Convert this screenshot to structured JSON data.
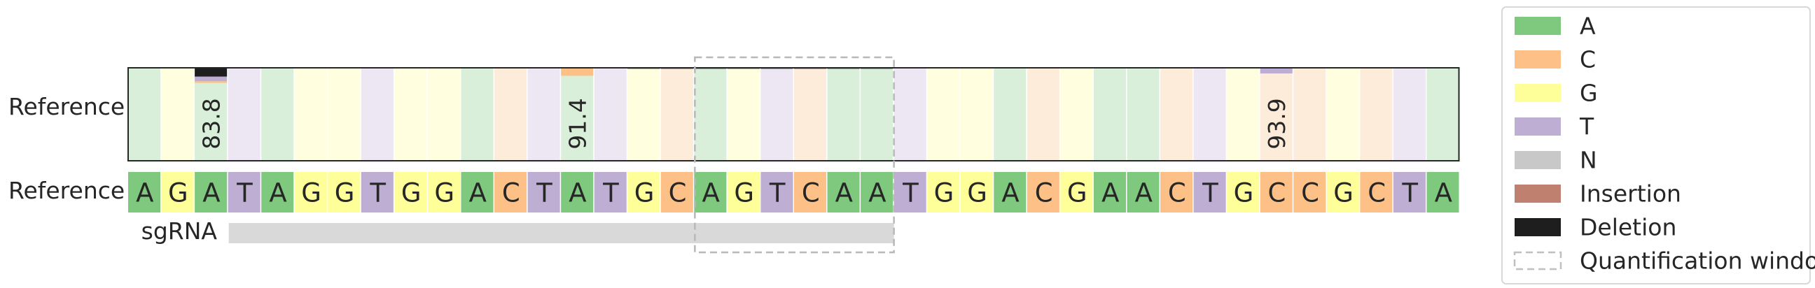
{
  "chart_data": {
    "type": "heatmap",
    "reference_row_label": "Reference",
    "sequence_row_label": "Reference",
    "sgrna_label": "sgRNA",
    "sequence": [
      "A",
      "G",
      "A",
      "T",
      "A",
      "G",
      "G",
      "T",
      "G",
      "G",
      "A",
      "C",
      "T",
      "A",
      "T",
      "G",
      "C",
      "A",
      "G",
      "T",
      "C",
      "A",
      "A",
      "T",
      "G",
      "G",
      "A",
      "C",
      "G",
      "A",
      "A",
      "C",
      "T",
      "G",
      "C",
      "C",
      "G",
      "C",
      "T",
      "A"
    ],
    "sgrna_span": [
      3,
      23
    ],
    "quantification_window": [
      17,
      23
    ],
    "percent_labels": [
      {
        "pos": 2,
        "text": "83.8"
      },
      {
        "pos": 13,
        "text": "91.4"
      },
      {
        "pos": 34,
        "text": "93.9"
      }
    ],
    "stacked_alleles": [
      {
        "pos": 2,
        "segments": [
          {
            "type": "Deletion",
            "value": 9.5
          },
          {
            "type": "T",
            "value": 5.0
          },
          {
            "type": "C",
            "value": 1.7
          }
        ]
      },
      {
        "pos": 13,
        "segments": [
          {
            "type": "C",
            "value": 8.6
          }
        ]
      },
      {
        "pos": 34,
        "segments": [
          {
            "type": "T",
            "value": 6.1
          }
        ]
      },
      {
        "pos": 15,
        "segments": [
          {
            "type": "Deletion",
            "value": 1.0
          }
        ]
      },
      {
        "pos": 16,
        "segments": [
          {
            "type": "Deletion",
            "value": 1.0
          }
        ]
      },
      {
        "pos": 17,
        "segments": [
          {
            "type": "Deletion",
            "value": 1.0
          }
        ]
      },
      {
        "pos": 18,
        "segments": [
          {
            "type": "Deletion",
            "value": 1.0
          }
        ]
      },
      {
        "pos": 19,
        "segments": [
          {
            "type": "Deletion",
            "value": 1.0
          }
        ]
      },
      {
        "pos": 20,
        "segments": [
          {
            "type": "Deletion",
            "value": 1.0
          }
        ]
      },
      {
        "pos": 21,
        "segments": [
          {
            "type": "Deletion",
            "value": 1.0
          }
        ]
      },
      {
        "pos": 22,
        "segments": [
          {
            "type": "Deletion",
            "value": 1.0
          }
        ]
      }
    ],
    "legend": [
      {
        "label": "A",
        "color": "#7fc97f"
      },
      {
        "label": "C",
        "color": "#fdc086"
      },
      {
        "label": "G",
        "color": "#ffff99"
      },
      {
        "label": "T",
        "color": "#beaed4"
      },
      {
        "label": "N",
        "color": "#c8c8c8"
      },
      {
        "label": "Insertion",
        "color": "#c08070"
      },
      {
        "label": "Deletion",
        "color": "#1e1e1e"
      },
      {
        "label": "Quantification window",
        "color": "#c0c0c0",
        "style": "dashed"
      }
    ],
    "legend_position": "right"
  }
}
